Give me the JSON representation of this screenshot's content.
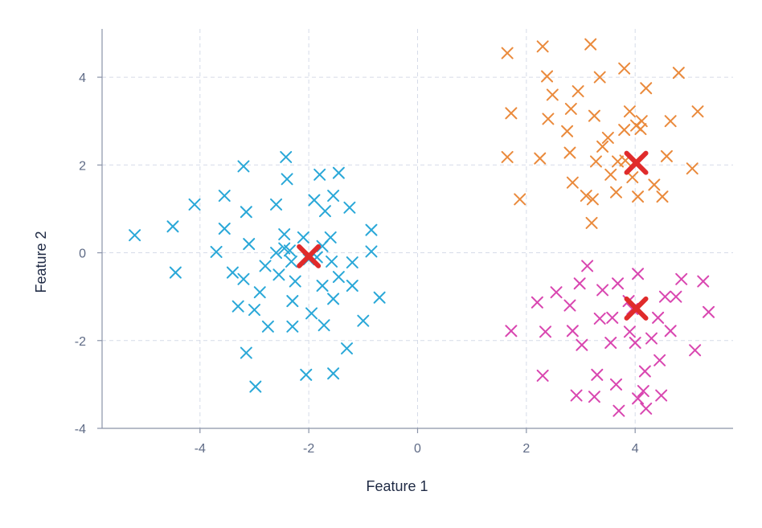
{
  "chart_data": {
    "type": "scatter",
    "title": "",
    "xlabel": "Feature 1",
    "ylabel": "Feature 2",
    "xlim": [
      -5.8,
      5.8
    ],
    "ylim": [
      -4.0,
      5.1
    ],
    "xticks": [
      -4,
      -2,
      0,
      2,
      4
    ],
    "yticks": [
      -4,
      -2,
      0,
      2,
      4
    ],
    "grid": true,
    "marker": "x",
    "series": [
      {
        "color": "#2aa8d8",
        "points": [
          [
            -5.2,
            0.4
          ],
          [
            -4.5,
            0.6
          ],
          [
            -4.45,
            -0.45
          ],
          [
            -4.1,
            1.1
          ],
          [
            -3.7,
            0.02
          ],
          [
            -3.55,
            1.3
          ],
          [
            -3.55,
            0.55
          ],
          [
            -3.4,
            -0.45
          ],
          [
            -3.3,
            -1.22
          ],
          [
            -3.2,
            1.97
          ],
          [
            -3.15,
            0.93
          ],
          [
            -3.2,
            -0.6
          ],
          [
            -3.1,
            0.2
          ],
          [
            -3.15,
            -2.28
          ],
          [
            -3.0,
            -1.3
          ],
          [
            -2.98,
            -3.05
          ],
          [
            -2.9,
            -0.9
          ],
          [
            -2.8,
            -0.3
          ],
          [
            -2.75,
            -1.68
          ],
          [
            -2.6,
            1.1
          ],
          [
            -2.6,
            0.0
          ],
          [
            -2.55,
            -0.5
          ],
          [
            -2.45,
            0.42
          ],
          [
            -2.45,
            0.1
          ],
          [
            -2.42,
            2.18
          ],
          [
            -2.4,
            1.68
          ],
          [
            -2.35,
            0.05
          ],
          [
            -2.32,
            -0.2
          ],
          [
            -2.3,
            -1.1
          ],
          [
            -2.3,
            -1.68
          ],
          [
            -2.25,
            -0.65
          ],
          [
            -2.1,
            0.35
          ],
          [
            -2.05,
            -2.78
          ],
          [
            -2.0,
            -0.15
          ],
          [
            -1.95,
            -1.38
          ],
          [
            -1.9,
            1.2
          ],
          [
            -1.85,
            -0.1
          ],
          [
            -1.8,
            1.78
          ],
          [
            -1.75,
            0.15
          ],
          [
            -1.75,
            -0.75
          ],
          [
            -1.72,
            -1.65
          ],
          [
            -1.7,
            0.95
          ],
          [
            -1.6,
            0.35
          ],
          [
            -1.58,
            -0.2
          ],
          [
            -1.55,
            1.3
          ],
          [
            -1.55,
            -1.05
          ],
          [
            -1.55,
            -2.75
          ],
          [
            -1.45,
            1.82
          ],
          [
            -1.45,
            -0.55
          ],
          [
            -1.3,
            -2.18
          ],
          [
            -1.25,
            1.03
          ],
          [
            -1.2,
            -0.22
          ],
          [
            -1.2,
            -0.75
          ],
          [
            -1.0,
            -1.55
          ],
          [
            -0.85,
            0.52
          ],
          [
            -0.85,
            0.03
          ],
          [
            -0.7,
            -1.02
          ]
        ]
      },
      {
        "color": "#ea8a3c",
        "points": [
          [
            1.65,
            4.55
          ],
          [
            1.65,
            2.18
          ],
          [
            1.72,
            3.18
          ],
          [
            1.88,
            1.22
          ],
          [
            2.25,
            2.15
          ],
          [
            2.3,
            4.7
          ],
          [
            2.38,
            4.02
          ],
          [
            2.4,
            3.05
          ],
          [
            2.48,
            3.6
          ],
          [
            2.75,
            2.77
          ],
          [
            2.8,
            2.28
          ],
          [
            2.82,
            3.28
          ],
          [
            2.85,
            1.6
          ],
          [
            2.95,
            3.68
          ],
          [
            3.1,
            1.3
          ],
          [
            3.18,
            4.75
          ],
          [
            3.2,
            0.68
          ],
          [
            3.22,
            1.22
          ],
          [
            3.25,
            3.12
          ],
          [
            3.28,
            2.08
          ],
          [
            3.35,
            4.0
          ],
          [
            3.4,
            2.42
          ],
          [
            3.5,
            2.62
          ],
          [
            3.55,
            1.78
          ],
          [
            3.65,
            1.38
          ],
          [
            3.68,
            2.08
          ],
          [
            3.8,
            4.2
          ],
          [
            3.8,
            2.8
          ],
          [
            3.82,
            2.1
          ],
          [
            3.9,
            3.22
          ],
          [
            3.95,
            1.72
          ],
          [
            4.0,
            2.08
          ],
          [
            4.02,
            2.9
          ],
          [
            4.05,
            1.28
          ],
          [
            4.1,
            2.82
          ],
          [
            4.12,
            3.0
          ],
          [
            4.2,
            3.75
          ],
          [
            4.35,
            1.55
          ],
          [
            4.5,
            1.28
          ],
          [
            4.58,
            2.2
          ],
          [
            4.65,
            3.0
          ],
          [
            4.8,
            4.1
          ],
          [
            5.05,
            1.92
          ],
          [
            5.15,
            3.22
          ]
        ]
      },
      {
        "color": "#d946b0",
        "points": [
          [
            1.72,
            -1.78
          ],
          [
            2.2,
            -1.13
          ],
          [
            2.3,
            -2.8
          ],
          [
            2.35,
            -1.8
          ],
          [
            2.55,
            -0.9
          ],
          [
            2.8,
            -1.2
          ],
          [
            2.85,
            -1.78
          ],
          [
            2.92,
            -3.25
          ],
          [
            2.98,
            -0.7
          ],
          [
            3.02,
            -2.1
          ],
          [
            3.12,
            -0.3
          ],
          [
            3.25,
            -3.28
          ],
          [
            3.3,
            -2.78
          ],
          [
            3.35,
            -1.5
          ],
          [
            3.4,
            -0.85
          ],
          [
            3.55,
            -2.05
          ],
          [
            3.58,
            -1.48
          ],
          [
            3.65,
            -3.0
          ],
          [
            3.68,
            -0.7
          ],
          [
            3.7,
            -3.6
          ],
          [
            3.88,
            -1.1
          ],
          [
            3.9,
            -1.8
          ],
          [
            3.95,
            -1.28
          ],
          [
            4.0,
            -2.05
          ],
          [
            4.05,
            -0.48
          ],
          [
            4.05,
            -3.32
          ],
          [
            4.15,
            -3.15
          ],
          [
            4.18,
            -2.7
          ],
          [
            4.2,
            -3.55
          ],
          [
            4.3,
            -1.95
          ],
          [
            4.42,
            -1.48
          ],
          [
            4.45,
            -2.45
          ],
          [
            4.48,
            -3.25
          ],
          [
            4.55,
            -1.0
          ],
          [
            4.65,
            -1.78
          ],
          [
            4.75,
            -1.0
          ],
          [
            4.85,
            -0.6
          ],
          [
            5.1,
            -2.22
          ],
          [
            5.25,
            -0.65
          ],
          [
            5.35,
            -1.35
          ]
        ]
      }
    ],
    "centroids": {
      "color": "#e02b2b",
      "points": [
        [
          -2.0,
          -0.08
        ],
        [
          4.02,
          2.05
        ],
        [
          4.02,
          -1.27
        ]
      ]
    }
  }
}
